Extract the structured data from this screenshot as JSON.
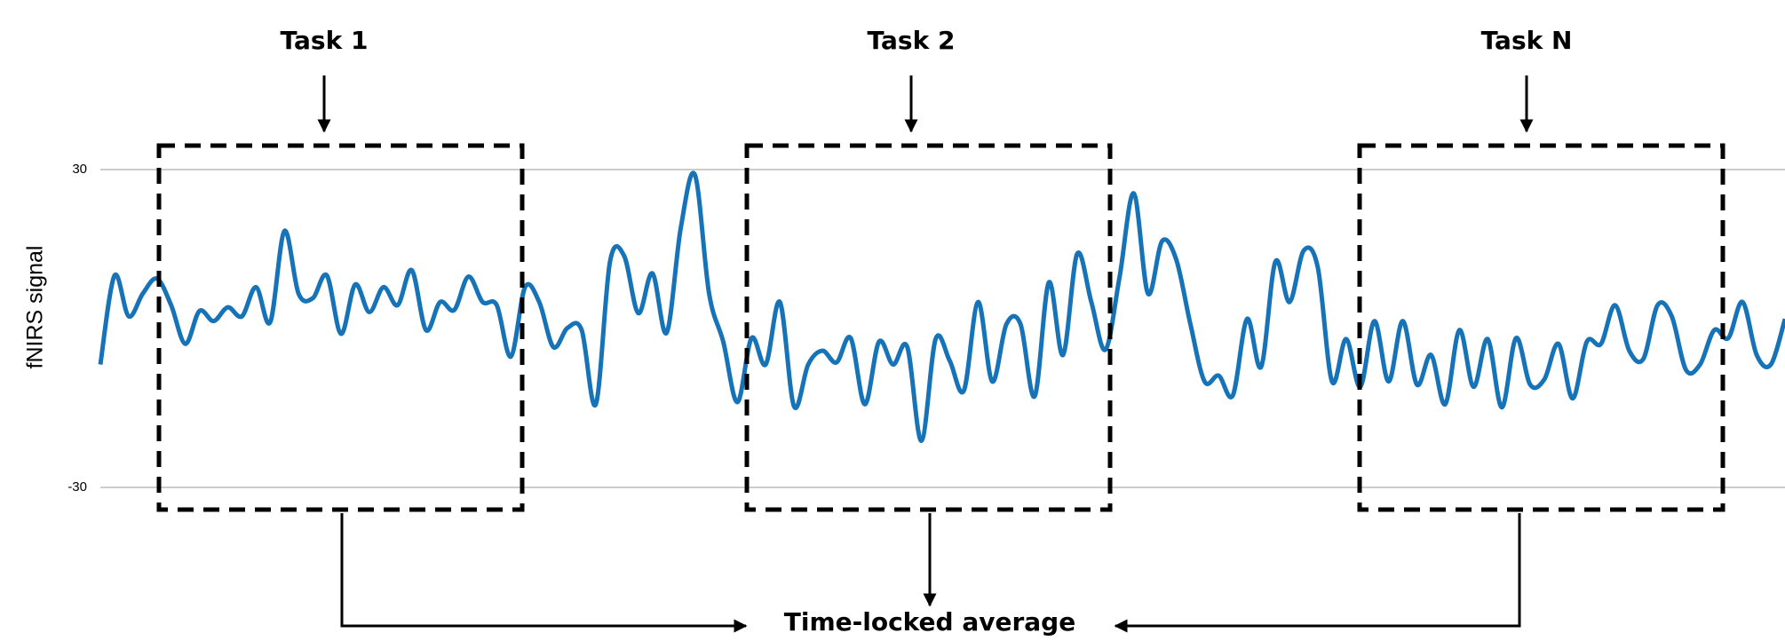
{
  "chart_data": {
    "type": "line",
    "ylabel": "fNIRS signal",
    "annotations": [
      "Task 1",
      "Task 2",
      "Task N",
      "Time-locked average"
    ],
    "ylim": [
      -30,
      30
    ],
    "yticks": [
      -30,
      30
    ],
    "grid": true,
    "series": [
      {
        "color": "#1673b8",
        "values": [
          -6.8,
          10,
          2.3,
          6.6,
          9.4,
          4.4,
          -2.9,
          3.3,
          1.4,
          4,
          2.3,
          7.8,
          1.2,
          18.4,
          6.6,
          5.7,
          10,
          -1,
          8.3,
          3.1,
          7.8,
          4.4,
          11,
          -0.3,
          5,
          3.5,
          9.8,
          5,
          4.4,
          -5.3,
          7.8,
          5,
          -3.5,
          0.1,
          -0.3,
          -14.3,
          12.6,
          13.7,
          2.9,
          10.4,
          -0.8,
          19,
          29,
          6.6,
          -2.5,
          -13.9,
          -1.8,
          -6.8,
          5,
          -14.7,
          -6.8,
          -4.2,
          -6.4,
          -1.8,
          -14.3,
          -2.5,
          -6.8,
          -3.5,
          -21.2,
          -2,
          -6.1,
          -11.7,
          5,
          -10,
          0.8,
          0.8,
          -12.8,
          8.7,
          -5,
          14.1,
          5,
          -4,
          9.8,
          25.5,
          6.6,
          16.5,
          13,
          0.8,
          -10,
          -8.9,
          -12.6,
          1.8,
          -7.2,
          12.6,
          5,
          14.7,
          11.5,
          -10,
          -2,
          -11,
          1.4,
          -10,
          1.4,
          -10.6,
          -5,
          -14.3,
          -0.3,
          -11,
          -2,
          -14.9,
          -1.8,
          -10.6,
          -9.6,
          -2.9,
          -13.2,
          -2.5,
          -2.9,
          4.4,
          -4.2,
          -5.7,
          4.4,
          2.3,
          -7.8,
          -6.8,
          -0.3,
          -1.8,
          5,
          -5,
          -6.8,
          1.8
        ]
      }
    ]
  }
}
